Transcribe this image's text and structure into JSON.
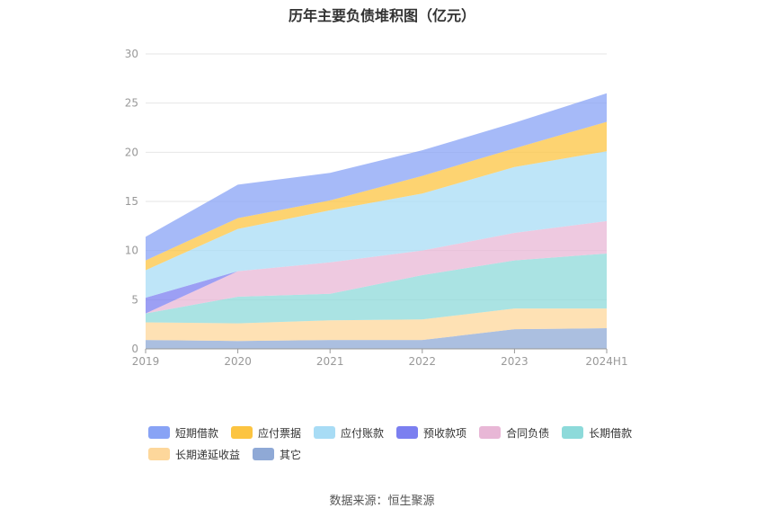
{
  "chart_data": {
    "type": "area",
    "stacked": true,
    "title": "历年主要负债堆积图（亿元）",
    "source": "数据来源：恒生聚源",
    "categories": [
      "2019",
      "2020",
      "2021",
      "2022",
      "2023",
      "2024H1"
    ],
    "ylim": [
      0,
      30
    ],
    "yticks": [
      0,
      5,
      10,
      15,
      20,
      25,
      30
    ],
    "grid": true,
    "legend_position": "bottom",
    "series": [
      {
        "name": "其它",
        "color": "#8fa9d6",
        "values": [
          0.9,
          0.8,
          0.9,
          0.9,
          2.0,
          2.1
        ]
      },
      {
        "name": "长期递延收益",
        "color": "#fdd79b",
        "values": [
          1.8,
          1.8,
          2.0,
          2.1,
          2.1,
          2.0
        ]
      },
      {
        "name": "长期借款",
        "color": "#8ddada",
        "values": [
          0.9,
          2.7,
          2.7,
          4.5,
          4.9,
          5.6
        ]
      },
      {
        "name": "合同负债",
        "color": "#e8b7d6",
        "values": [
          0.0,
          2.6,
          3.2,
          2.5,
          2.8,
          3.3
        ]
      },
      {
        "name": "预收款项",
        "color": "#7b7ff0",
        "values": [
          1.6,
          0.0,
          0.0,
          0.0,
          0.0,
          0.0
        ]
      },
      {
        "name": "应付账款",
        "color": "#a8dcf5",
        "values": [
          2.8,
          4.3,
          5.3,
          5.8,
          6.7,
          7.1
        ]
      },
      {
        "name": "应付票据",
        "color": "#fcc441",
        "values": [
          1.0,
          1.1,
          1.0,
          1.8,
          1.9,
          3.0
        ]
      },
      {
        "name": "短期借款",
        "color": "#88a3f5",
        "values": [
          2.4,
          3.4,
          2.8,
          2.6,
          2.6,
          2.9
        ]
      }
    ],
    "legend_order": [
      "短期借款",
      "应付票据",
      "应付账款",
      "预收款项",
      "合同负债",
      "长期借款",
      "长期递延收益",
      "其它"
    ]
  }
}
